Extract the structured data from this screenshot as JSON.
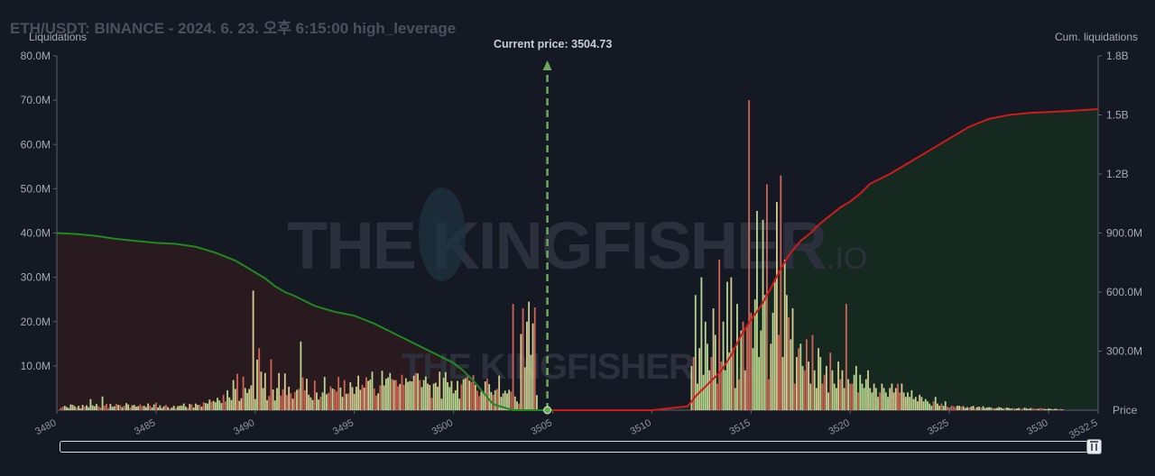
{
  "header": {
    "title": "ETH/USDT: BINANCE - 2024. 6. 23. 오후 6:15:00 high_leverage",
    "left_axis_title": "Liquidations",
    "right_axis_title": "Cum. liquidations",
    "price_axis_title": "Price",
    "current_price_label": "Current price: 3504.73"
  },
  "watermark": {
    "text_main": "THE KINGFISHER",
    "text_suffix": ".IO"
  },
  "colors": {
    "background": "#151924",
    "long_side_fill": "#2a1a20",
    "short_side_fill": "#162a22",
    "cum_long_line": "#1f8a1f",
    "cum_short_line": "#d11a1a",
    "current_price_line": "#6aaa5a",
    "bar_green": "#c6e89a",
    "bar_yellow": "#e6d99a",
    "bar_red": "#e06a5a"
  },
  "chart_data": {
    "type": "bar",
    "title": "",
    "xlabel": "Price",
    "ylabel_left": "Liquidations",
    "ylabel_right": "Cum. liquidations",
    "x_range": [
      3480,
      3532.5
    ],
    "x_ticks": [
      "3480",
      "3485",
      "3490",
      "3495",
      "3500",
      "3505",
      "3510",
      "3515",
      "3520",
      "3525",
      "3530",
      "3532.5"
    ],
    "y_left_range": [
      0,
      80000000
    ],
    "y_left_ticks": [
      "10.0M",
      "20.0M",
      "30.0M",
      "40.0M",
      "50.0M",
      "60.0M",
      "70.0M",
      "80.0M"
    ],
    "y_right_range": [
      0,
      1800000000
    ],
    "y_right_ticks": [
      "300.0M",
      "600.0M",
      "900.0M",
      "1.2B",
      "1.5B",
      "1.8B"
    ],
    "current_price": 3504.73,
    "long_liquidation_bars": {
      "price_start": 3480.2,
      "price_step": 0.1,
      "values_millions": [
        0.5,
        0.8,
        1.0,
        0.7,
        0.5,
        1.3,
        1.2,
        0.9,
        0.6,
        1.0,
        0.4,
        1.2,
        0.8,
        1.1,
        0.7,
        2.5,
        1.1,
        0.9,
        1.4,
        0.9,
        0.6,
        3.1,
        1.0,
        1.4,
        0.5,
        1.4,
        0.8,
        0.9,
        1.4,
        1.2,
        1.1,
        0.7,
        1.0,
        1.6,
        1.3,
        0.6,
        1.1,
        1.2,
        0.8,
        0.9,
        1.3,
        0.9,
        1.0,
        0.7,
        1.5,
        1.0,
        0.6,
        1.3,
        1.7,
        0.6,
        1.1,
        0.5,
        0.9,
        1.2,
        0.7,
        0.4,
        0.6,
        1.0,
        0.5,
        0.9,
        1.0,
        1.0,
        1.5,
        0.8,
        0.5,
        1.4,
        1.3,
        0.6,
        1.5,
        1.2,
        1.2,
        0.8,
        1.8,
        1.6,
        1.5,
        2.4,
        1.9,
        2.1,
        1.8,
        2.8,
        2.2,
        1.6,
        3.5,
        2.0,
        4.5,
        2.9,
        2.3,
        6.8,
        4.8,
        8.2,
        2.1,
        2.7,
        7.6,
        5.0,
        3.9,
        4.8,
        5.6,
        27.0,
        2.5,
        11.4,
        14.0,
        8.7,
        5.0,
        8.4,
        2.3,
        3.2,
        11.5,
        4.7,
        2.2,
        5.0,
        8.4,
        3.3,
        4.7,
        8.3,
        3.4,
        5.3,
        3.8,
        2.6,
        4.1,
        4.6,
        4.8,
        15.5,
        7.4,
        4.5,
        7.1,
        3.5,
        2.9,
        2.3,
        6.7,
        4.0,
        2.4,
        3.0,
        4.0,
        7.5,
        3.6,
        3.9,
        5.4,
        4.9,
        4.7,
        4.2,
        7.5,
        5.1,
        3.0,
        6.8,
        3.7,
        3.8,
        6.3,
        5.2,
        3.7,
        5.3,
        7.8,
        4.6,
        5.7,
        5.1,
        7.4,
        6.6,
        6.9,
        8.7,
        4.9,
        3.3,
        3.8,
        5.6,
        8.9,
        5.6,
        7.1,
        7.4,
        8.4,
        7.0,
        6.8,
        6.8,
        5.4,
        5.9,
        8.0,
        5.7,
        7.2,
        6.4,
        6.6,
        6.5,
        7.8,
        8.4,
        8.3,
        6.8,
        5.2,
        6.8,
        7.6,
        6.0,
        5.7,
        2.8,
        6.0,
        6.2,
        5.3,
        8.7,
        2.6,
        7.3,
        8.6,
        6.3,
        5.2,
        6.6,
        3.8,
        4.5,
        6.6,
        2.6,
        5.8,
        7.0,
        7.2,
        7.6,
        6.7,
        6.4,
        7.9,
        5.7,
        4.4,
        3.2,
        4.2,
        4.1,
        6.5,
        7.1,
        5.9,
        4.1,
        3.5,
        4.5,
        4.8,
        7.8,
        3.0,
        3.8,
        4.4,
        3.8,
        4.6,
        4.2,
        24.0,
        3.1,
        2.0,
        1.5,
        17.2,
        23.0,
        9.7,
        20.0,
        24.5,
        12.5,
        19.6,
        23.2,
        3.4
      ]
    },
    "short_liquidation_bars": {
      "price_start": 3512.0,
      "price_step": 0.1,
      "values_millions": [
        10.0,
        12.0,
        26.0,
        6.0,
        14.0,
        30.0,
        8.0,
        20.0,
        15.0,
        9.0,
        12.0,
        23.0,
        17.0,
        6.0,
        34.0,
        11.0,
        20.0,
        9.0,
        29.0,
        13.0,
        30.0,
        14.0,
        5.0,
        24.0,
        7.0,
        18.0,
        20.0,
        9.0,
        19.0,
        70.0,
        22.0,
        14.0,
        25.0,
        45.0,
        12.0,
        18.0,
        43.0,
        26.0,
        51.0,
        7.0,
        15.0,
        22.0,
        29.0,
        47.0,
        17.0,
        53.0,
        12.0,
        34.0,
        26.0,
        21.0,
        16.0,
        23.0,
        6.0,
        12.0,
        14.0,
        15.0,
        10.0,
        9.0,
        16.0,
        11.0,
        6.0,
        17.0,
        9.0,
        5.0,
        14.0,
        12.0,
        6.0,
        8.0,
        10.0,
        4.0,
        13.0,
        9.0,
        6.0,
        5.0,
        11.0,
        7.0,
        9.0,
        5.0,
        24.0,
        7.0,
        6.0,
        6.0,
        8.0,
        10.0,
        4.0,
        8.0,
        6.0,
        5.0,
        7.0,
        9.0,
        5.0,
        4.0,
        6.0,
        5.0,
        3.0,
        4.0,
        6.0,
        5.0,
        4.0,
        3.0,
        5.0,
        6.0,
        4.0,
        5.0,
        6.0,
        4.0,
        6.0,
        4.0,
        3.0,
        4.0,
        3.0,
        4.5,
        2.5,
        3.0,
        2.0,
        3.5,
        3.0,
        2.0,
        2.5,
        2.0,
        1.5,
        1.0,
        2.0,
        3.0,
        1.5,
        1.0,
        1.5,
        1.0,
        2.0,
        0.8,
        0.6,
        1.0,
        0.9,
        0.7,
        1.0,
        1.0,
        0.8,
        0.9,
        0.5,
        0.7,
        0.6,
        0.8,
        1.0,
        0.5,
        0.7,
        0.8,
        0.6,
        0.9,
        0.5,
        0.6,
        0.7,
        0.6,
        0.5,
        0.4,
        0.5,
        0.7,
        0.6,
        0.4,
        0.5,
        0.6,
        0.5,
        0.4,
        0.5,
        0.3,
        0.4,
        0.5,
        0.3,
        0.4,
        0.6,
        0.4,
        0.3,
        0.5,
        0.4,
        0.3,
        0.4,
        0.3,
        0.5,
        0.4,
        0.3,
        0.2,
        0.4,
        0.3,
        0.2,
        0.3,
        0.3,
        0.2,
        0.3,
        0.2
      ]
    },
    "cum_long_curve_millions": {
      "x": [
        3480,
        3481,
        3482,
        3483,
        3484,
        3485,
        3486,
        3487,
        3488,
        3489,
        3490,
        3490.5,
        3491,
        3491.5,
        3492,
        3493,
        3494,
        3495,
        3496,
        3497,
        3498,
        3499,
        3500,
        3500.5,
        3501,
        3501.5,
        3502,
        3503,
        3504,
        3505
      ],
      "y": [
        900,
        895,
        885,
        870,
        860,
        850,
        845,
        830,
        800,
        760,
        700,
        670,
        630,
        600,
        580,
        530,
        500,
        480,
        440,
        390,
        340,
        290,
        240,
        200,
        150,
        90,
        30,
        0,
        0,
        0
      ]
    },
    "cum_short_curve_millions": {
      "x": [
        3505,
        3510,
        3511.8,
        3512.2,
        3512.8,
        3513.5,
        3514,
        3514.5,
        3515,
        3515.5,
        3516,
        3516.5,
        3517,
        3517.5,
        3518,
        3518.5,
        3519,
        3519.5,
        3520,
        3520.5,
        3521,
        3522,
        3523,
        3524,
        3525,
        3526,
        3527,
        3528,
        3529,
        3530,
        3531,
        3532.5
      ],
      "y": [
        0,
        0,
        20,
        70,
        130,
        200,
        280,
        380,
        460,
        530,
        620,
        720,
        800,
        860,
        900,
        950,
        990,
        1030,
        1060,
        1100,
        1150,
        1200,
        1260,
        1320,
        1380,
        1440,
        1480,
        1500,
        1510,
        1515,
        1520,
        1530
      ]
    }
  }
}
